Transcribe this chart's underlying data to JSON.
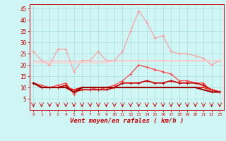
{
  "x": [
    0,
    1,
    2,
    3,
    4,
    5,
    6,
    7,
    8,
    9,
    10,
    11,
    12,
    13,
    14,
    15,
    16,
    17,
    18,
    19,
    20,
    21,
    22,
    23
  ],
  "series": [
    {
      "values": [
        26,
        22,
        20,
        27,
        27,
        17,
        22,
        22,
        26,
        22,
        22,
        26,
        35,
        44,
        39,
        32,
        33,
        26,
        25,
        25,
        24,
        23,
        20,
        22
      ],
      "color": "#ff9999",
      "lw": 0.8,
      "marker": "+"
    },
    {
      "values": [
        22,
        22,
        22,
        22,
        22,
        22,
        22,
        22,
        22,
        22,
        22,
        22,
        22,
        22,
        22,
        22,
        22,
        22,
        22,
        22,
        22,
        22,
        22,
        22
      ],
      "color": "#ffbbbb",
      "lw": 0.9,
      "marker": null
    },
    {
      "values": [
        21,
        21,
        21,
        21,
        21,
        21,
        21,
        21,
        21,
        21,
        22,
        22,
        22,
        22,
        22,
        22,
        22,
        22,
        22,
        22,
        22,
        22,
        22,
        22
      ],
      "color": "#ffcccc",
      "lw": 0.9,
      "marker": null
    },
    {
      "values": [
        12,
        11,
        10,
        11,
        12,
        7,
        10,
        10,
        9,
        10,
        11,
        13,
        16,
        20,
        19,
        18,
        17,
        16,
        13,
        13,
        12,
        12,
        8,
        8
      ],
      "color": "#ff4444",
      "lw": 0.9,
      "marker": "+"
    },
    {
      "values": [
        12,
        10,
        10,
        10,
        11,
        8,
        9,
        9,
        9,
        9,
        10,
        12,
        12,
        12,
        13,
        12,
        12,
        13,
        12,
        12,
        12,
        11,
        9,
        8
      ],
      "color": "#cc0000",
      "lw": 1.3,
      "marker": "+"
    },
    {
      "values": [
        12,
        10,
        10,
        10,
        10,
        9,
        10,
        10,
        10,
        10,
        10,
        10,
        10,
        10,
        10,
        10,
        10,
        10,
        10,
        10,
        10,
        10,
        9,
        8
      ],
      "color": "#dd2222",
      "lw": 1.2,
      "marker": null
    },
    {
      "values": [
        12,
        10,
        10,
        10,
        10,
        9,
        10,
        10,
        10,
        10,
        10,
        10,
        10,
        10,
        10,
        10,
        10,
        10,
        10,
        10,
        10,
        10,
        9,
        8
      ],
      "color": "#ff2222",
      "lw": 1.0,
      "marker": null
    },
    {
      "values": [
        12,
        10,
        10,
        10,
        10,
        8,
        10,
        10,
        10,
        10,
        10,
        10,
        10,
        10,
        10,
        10,
        10,
        10,
        10,
        10,
        10,
        9,
        8,
        8
      ],
      "color": "#990000",
      "lw": 1.5,
      "marker": null
    }
  ],
  "xlabel": "Vent moyen/en rafales ( km/h )",
  "ylabel_ticks": [
    5,
    10,
    15,
    20,
    25,
    30,
    35,
    40,
    45
  ],
  "xlim": [
    -0.5,
    23.5
  ],
  "ylim": [
    0,
    47
  ],
  "bg_color": "#cff5f5",
  "grid_color": "#aadddd",
  "text_color": "#cc0000"
}
